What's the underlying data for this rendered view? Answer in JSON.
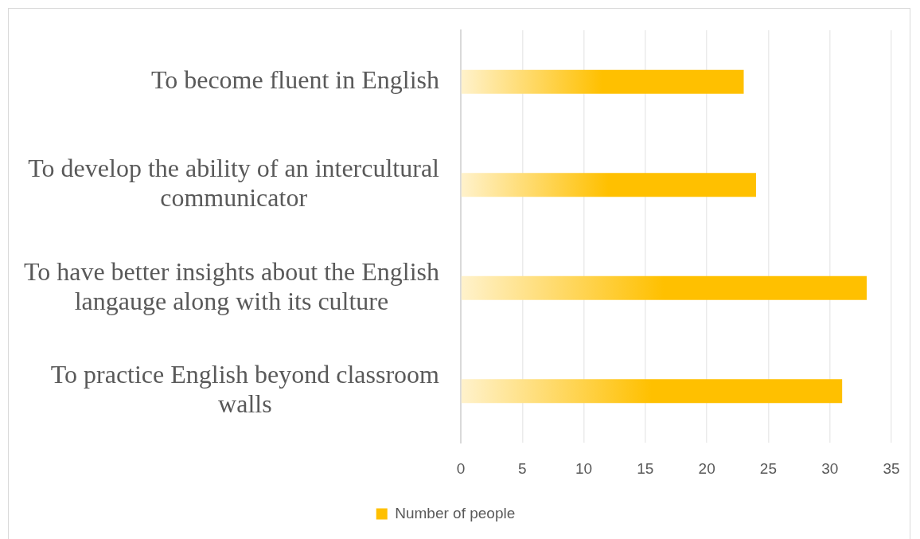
{
  "chart_data": {
    "type": "bar",
    "orientation": "horizontal",
    "categories": [
      "To become fluent in English",
      "To develop the ability of an intercultural communicator",
      "To have better insights about the English langauge along with its culture",
      "To practice English beyond classroom walls"
    ],
    "series": [
      {
        "name": "Number of people",
        "color": "#ffc000",
        "values": [
          23,
          24,
          33,
          31
        ]
      }
    ],
    "xlim": [
      0,
      35
    ],
    "xticks": [
      0,
      5,
      10,
      15,
      20,
      25,
      30,
      35
    ],
    "grid": "x",
    "legend": "bottom"
  }
}
